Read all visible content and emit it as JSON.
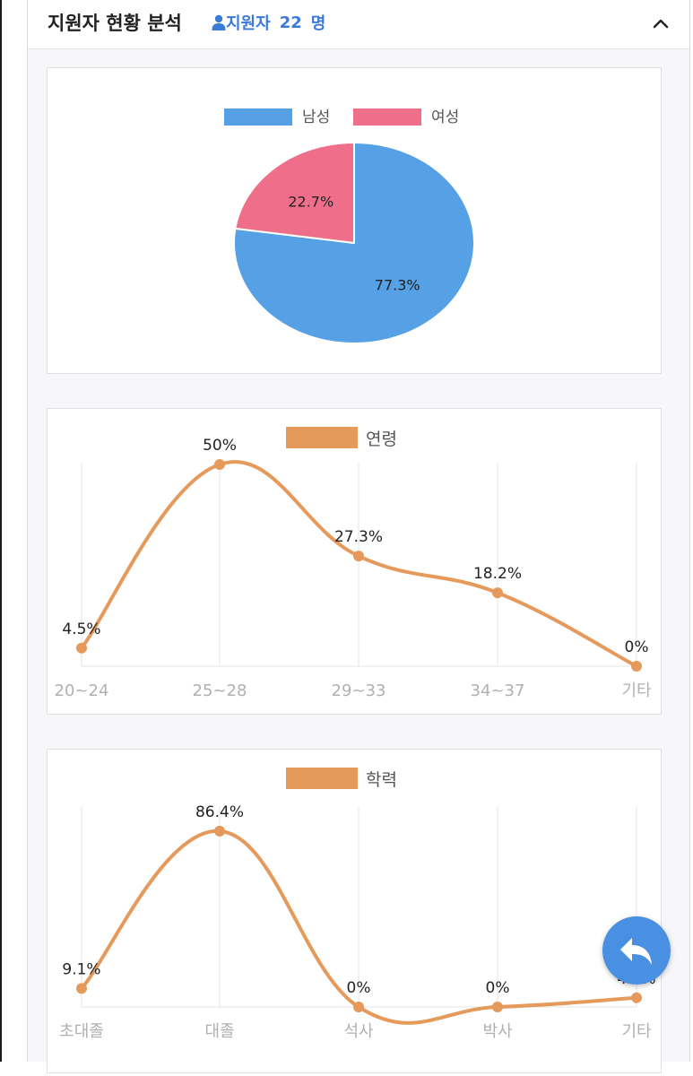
{
  "header": {
    "title": "지원자 현황 분석",
    "count_label": "지원자",
    "count_value": "22",
    "count_unit": "명"
  },
  "colors": {
    "male": "#56a0e5",
    "female": "#ef6f8a",
    "line": "#e59a5c",
    "accent": "#3a7ad9"
  },
  "icons": {
    "person": "person-icon",
    "collapse": "chevron-up-icon",
    "back": "undo-arrow-icon"
  },
  "chart_data": [
    {
      "type": "pie",
      "title": "",
      "legend": [
        "남성",
        "여성"
      ],
      "legend_position": "top",
      "slices": [
        {
          "label": "남성",
          "value": 77.3,
          "display": "77.3%"
        },
        {
          "label": "여성",
          "value": 22.7,
          "display": "22.7%"
        }
      ]
    },
    {
      "type": "line",
      "title": "",
      "legend": [
        "연령"
      ],
      "legend_position": "top",
      "categories": [
        "20~24",
        "25~28",
        "29~33",
        "34~37",
        "기타"
      ],
      "series": [
        {
          "name": "연령",
          "values": [
            4.5,
            50,
            27.3,
            18.2,
            0
          ],
          "labels": [
            "4.5%",
            "50%",
            "27.3%",
            "18.2%",
            "0%"
          ]
        }
      ],
      "grid": "vertical",
      "smooth": true
    },
    {
      "type": "line",
      "title": "",
      "legend": [
        "학력"
      ],
      "legend_position": "top",
      "categories": [
        "초대졸",
        "대졸",
        "석사",
        "박사",
        "기타"
      ],
      "series": [
        {
          "name": "학력",
          "values": [
            9.1,
            86.4,
            0,
            0,
            4.5
          ],
          "labels": [
            "9.1%",
            "86.4%",
            "0%",
            "0%",
            "4.5%"
          ]
        }
      ],
      "grid": "vertical",
      "smooth": true
    }
  ]
}
